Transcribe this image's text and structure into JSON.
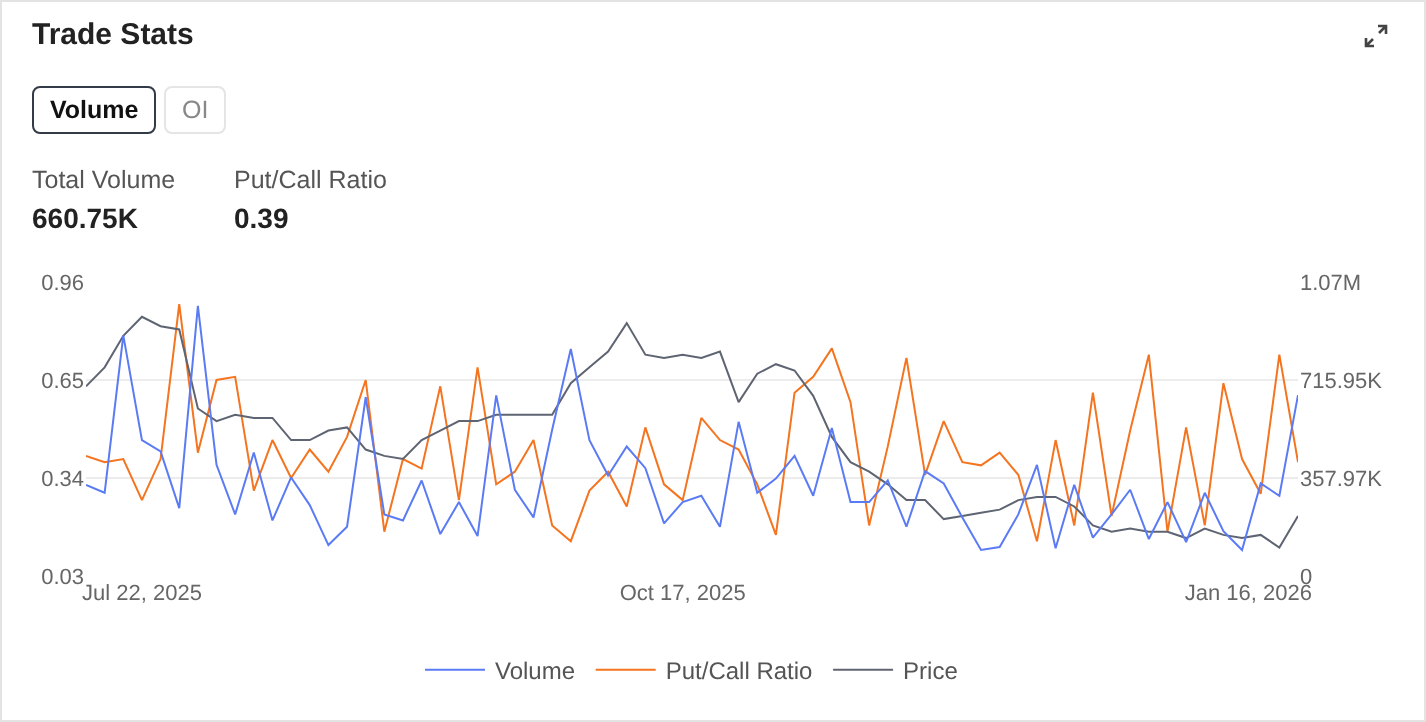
{
  "chart_data": {
    "type": "line",
    "title": "Trade Stats",
    "annotations": [
      "Volume",
      "OI",
      "Total Volume",
      "660.75K",
      "Put/Call Ratio",
      "0.39"
    ],
    "x": [
      "2025-07-13",
      "2025-07-16",
      "2025-07-19",
      "2025-07-22",
      "2025-07-25",
      "2025-07-28",
      "2025-07-31",
      "2025-08-03",
      "2025-08-06",
      "2025-08-09",
      "2025-08-12",
      "2025-08-15",
      "2025-08-18",
      "2025-08-21",
      "2025-08-24",
      "2025-08-27",
      "2025-08-30",
      "2025-09-02",
      "2025-09-05",
      "2025-09-08",
      "2025-09-11",
      "2025-09-14",
      "2025-09-17",
      "2025-09-20",
      "2025-09-23",
      "2025-09-26",
      "2025-09-29",
      "2025-10-02",
      "2025-10-05",
      "2025-10-08",
      "2025-10-11",
      "2025-10-14",
      "2025-10-17",
      "2025-10-20",
      "2025-10-23",
      "2025-10-26",
      "2025-10-29",
      "2025-11-01",
      "2025-11-04",
      "2025-11-07",
      "2025-11-10",
      "2025-11-13",
      "2025-11-16",
      "2025-11-19",
      "2025-11-22",
      "2025-11-25",
      "2025-11-28",
      "2025-12-01",
      "2025-12-04",
      "2025-12-07",
      "2025-12-10",
      "2025-12-13",
      "2025-12-16",
      "2025-12-19",
      "2025-12-22",
      "2025-12-25",
      "2025-12-28",
      "2025-12-31",
      "2026-01-03",
      "2026-01-06",
      "2026-01-09",
      "2026-01-12",
      "2026-01-15",
      "2026-01-18",
      "2026-01-21",
      "2026-01-24"
    ],
    "series": [
      {
        "name": "Volume",
        "color": "#5b7bf5",
        "axis": "y2",
        "values": [
          333000,
          304000,
          879000,
          496000,
          455000,
          248000,
          987000,
          406000,
          225000,
          451000,
          203000,
          360000,
          259000,
          113000,
          180000,
          653000,
          225000,
          203000,
          349000,
          153000,
          270000,
          146000,
          660000,
          315000,
          214000,
          534000,
          829000,
          496000,
          367000,
          473000,
          394000,
          192000,
          270000,
          293000,
          180000,
          563000,
          304000,
          356000,
          439000,
          293000,
          541000,
          270000,
          270000,
          349000,
          180000,
          383000,
          338000,
          214000,
          95000,
          106000,
          225000,
          406000,
          101000,
          333000,
          140000,
          225000,
          315000,
          135000,
          270000,
          124000,
          304000,
          164000,
          95000,
          338000,
          293000,
          660750
        ]
      },
      {
        "name": "Put/Call Ratio",
        "color": "#f4741f",
        "axis": "y",
        "values": [
          0.41,
          0.39,
          0.4,
          0.27,
          0.4,
          0.89,
          0.42,
          0.65,
          0.66,
          0.3,
          0.46,
          0.34,
          0.43,
          0.36,
          0.47,
          0.65,
          0.17,
          0.4,
          0.37,
          0.63,
          0.27,
          0.69,
          0.32,
          0.36,
          0.46,
          0.19,
          0.14,
          0.3,
          0.36,
          0.25,
          0.5,
          0.32,
          0.27,
          0.53,
          0.46,
          0.43,
          0.32,
          0.16,
          0.61,
          0.66,
          0.75,
          0.58,
          0.19,
          0.44,
          0.72,
          0.35,
          0.52,
          0.39,
          0.38,
          0.42,
          0.35,
          0.14,
          0.46,
          0.19,
          0.61,
          0.22,
          0.49,
          0.73,
          0.17,
          0.5,
          0.19,
          0.64,
          0.4,
          0.29,
          0.73,
          0.39
        ]
      },
      {
        "name": "Price",
        "color": "#5e6472",
        "axis": "y",
        "values": [
          0.63,
          0.69,
          0.79,
          0.85,
          0.82,
          0.81,
          0.56,
          0.52,
          0.54,
          0.53,
          0.53,
          0.46,
          0.46,
          0.49,
          0.5,
          0.43,
          0.41,
          0.4,
          0.46,
          0.49,
          0.52,
          0.52,
          0.54,
          0.54,
          0.54,
          0.54,
          0.64,
          0.69,
          0.74,
          0.83,
          0.73,
          0.72,
          0.73,
          0.72,
          0.74,
          0.58,
          0.67,
          0.7,
          0.68,
          0.6,
          0.47,
          0.39,
          0.36,
          0.32,
          0.27,
          0.27,
          0.21,
          0.22,
          0.23,
          0.24,
          0.27,
          0.28,
          0.28,
          0.25,
          0.19,
          0.17,
          0.18,
          0.17,
          0.17,
          0.15,
          0.18,
          0.16,
          0.15,
          0.16,
          0.12,
          0.22
        ]
      }
    ],
    "xlim": [
      "2025-07-13",
      "2026-01-24"
    ],
    "xticks": [
      {
        "value": "2025-07-22",
        "label": "Jul 22, 2025"
      },
      {
        "value": "2025-10-17",
        "label": "Oct 17, 2025"
      },
      {
        "value": "2026-01-16",
        "label": "Jan 16, 2026"
      }
    ],
    "ylim": [
      0.03,
      0.96
    ],
    "yticks": [
      0.03,
      0.34,
      0.65,
      0.96
    ],
    "y2lim": [
      0,
      1073910
    ],
    "y2ticks": [
      0,
      {
        "value": 357970,
        "label": "357.97K"
      },
      {
        "value": 715950,
        "label": "715.95K"
      },
      {
        "value": 1073910,
        "label": "1.07M"
      }
    ],
    "grid": "y",
    "legend": "bottom"
  }
}
